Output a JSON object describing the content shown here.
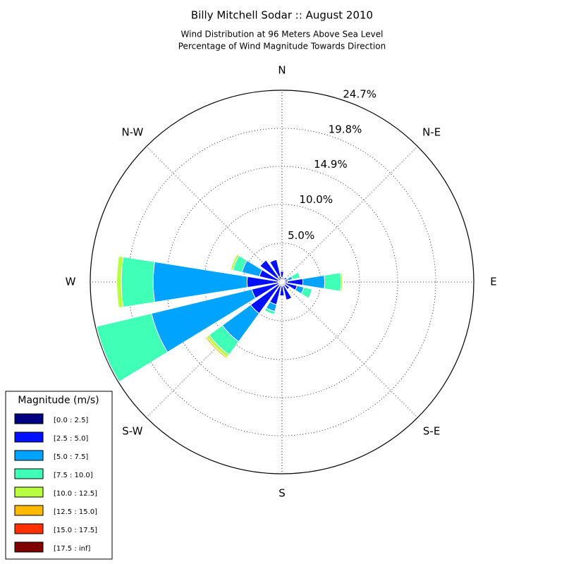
{
  "chart_data": {
    "type": "windrose",
    "title": "Billy Mitchell Sodar :: August 2010",
    "subtitle": [
      "Wind Distribution at 96 Meters Above Sea Level",
      "Percentage of Wind Magnitude Towards Direction"
    ],
    "categories": [
      "N",
      null,
      "N-E",
      null,
      "E",
      null,
      "S-E",
      null,
      "S",
      null,
      "S-W",
      null,
      "W",
      null,
      "N-W",
      null
    ],
    "rlim": [
      0,
      24.7
    ],
    "rticks": [
      {
        "value": 5.0,
        "label": "5.0%"
      },
      {
        "value": 10.0,
        "label": "10.0%"
      },
      {
        "value": 14.9,
        "label": "14.9%"
      },
      {
        "value": 19.8,
        "label": "19.8%"
      },
      {
        "value": 24.7,
        "label": "24.7%"
      }
    ],
    "grid": true,
    "legend_title": "Magnitude (m/s)",
    "legend_position": "lower left",
    "series": [
      {
        "name": "[0.0 : 2.5]",
        "color": "#000080",
        "values": [
          0.6,
          0.3,
          0.4,
          0.4,
          0.7,
          0.4,
          0.4,
          0.5,
          0.5,
          0.5,
          0.5,
          0.4,
          0.5,
          0.5,
          0.7,
          0.8
        ]
      },
      {
        "name": "[2.5 : 5.0]",
        "color": "#0010ff",
        "values": [
          0.8,
          0.3,
          0.4,
          0.4,
          2.0,
          1.6,
          0.8,
          1.9,
          1.3,
          2.5,
          4.5,
          3.6,
          4.0,
          2.5,
          2.8,
          2.2
        ]
      },
      {
        "name": "[5.0 : 7.5]",
        "color": "#00a4ff",
        "values": [
          0,
          0,
          0,
          0.6,
          2.8,
          0.9,
          0,
          0,
          0,
          0.9,
          4.5,
          13.3,
          12.1,
          2.3,
          0,
          0
        ]
      },
      {
        "name": "[7.5 : 10.0]",
        "color": "#40ffb7",
        "values": [
          0,
          0,
          0,
          1.0,
          2.1,
          1.1,
          0,
          0,
          0,
          0.4,
          2.1,
          7.3,
          4.1,
          1.2,
          0,
          0
        ]
      },
      {
        "name": "[10.0 : 12.5]",
        "color": "#b7ff40",
        "values": [
          0,
          0,
          0,
          0.1,
          0.2,
          0,
          0,
          0,
          0,
          0,
          0.4,
          0,
          0.6,
          0.3,
          0,
          0
        ]
      },
      {
        "name": "[12.5 : 15.0]",
        "color": "#ffb900",
        "values": [
          0,
          0,
          0,
          0,
          0,
          0,
          0,
          0,
          0,
          0,
          0.2,
          0,
          0,
          0.1,
          0,
          0
        ]
      },
      {
        "name": "[15.0 : 17.5]",
        "color": "#ff3000",
        "values": [
          0,
          0,
          0,
          0,
          0,
          0,
          0,
          0,
          0,
          0,
          0,
          0,
          0,
          0,
          0,
          0
        ]
      },
      {
        "name": "[17.5 : inf]",
        "color": "#800000",
        "values": [
          0,
          0,
          0,
          0,
          0,
          0,
          0,
          0,
          0,
          0,
          0,
          0,
          0,
          0,
          0,
          0
        ]
      }
    ]
  }
}
